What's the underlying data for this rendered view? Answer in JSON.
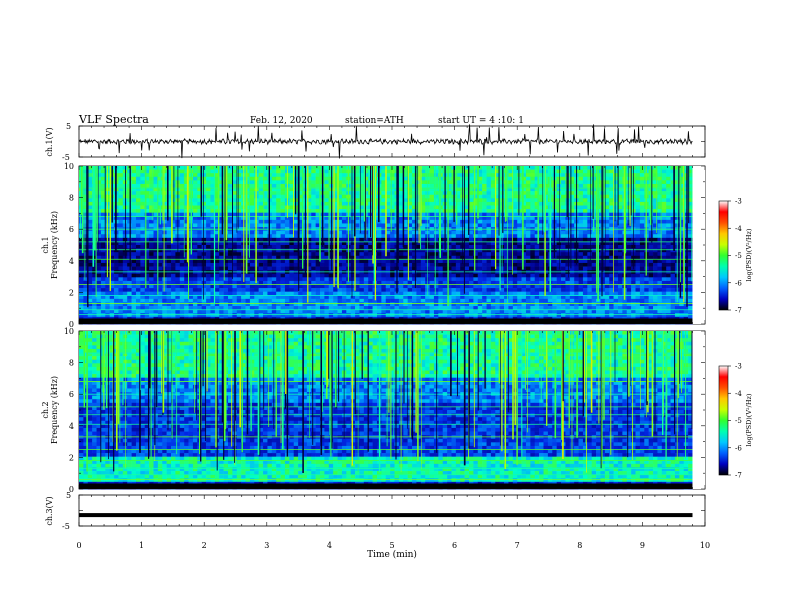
{
  "header": {
    "title": "VLF Spectra",
    "date": "Feb. 12, 2020",
    "station": "station=ATH",
    "start": "start UT =  4 :10: 1"
  },
  "chart_data": [
    {
      "type": "line",
      "ylabel": "ch.1(V)",
      "ylim": [
        -5,
        5
      ],
      "yticks": [
        "5",
        "-5"
      ],
      "baseline": 0,
      "xlim": [
        0,
        10
      ],
      "x_end": 9.8
    },
    {
      "type": "heatmap",
      "ylabel": "ch.1\nFrequency (kHz)",
      "ylabel_ch": "ch.1",
      "ylabel_freq": "Frequency (kHz)",
      "ylim": [
        0,
        10
      ],
      "yticks": [
        "0",
        "2",
        "4",
        "6",
        "8",
        "10"
      ],
      "xlim": [
        0,
        10
      ],
      "x_end": 9.8,
      "colorbar": {
        "label": "log(PSD)(V²/Hz)",
        "range": [
          -7,
          -3
        ],
        "ticks": [
          "-3",
          "-4",
          "-5",
          "-6",
          "-7"
        ],
        "colors": [
          "#000000",
          "#0000c0",
          "#0060ff",
          "#00c8ff",
          "#00ffb0",
          "#30ff30",
          "#c8ff00",
          "#ffc800",
          "#ff5000",
          "#ff0000",
          "#ffffff"
        ]
      }
    },
    {
      "type": "heatmap",
      "ylabel": "ch.2\nFrequency (kHz)",
      "ylabel_ch": "ch.2",
      "ylabel_freq": "Frequency (kHz)",
      "ylim": [
        0,
        10
      ],
      "yticks": [
        "0",
        "2",
        "4",
        "6",
        "8",
        "10"
      ],
      "xlim": [
        0,
        10
      ],
      "x_end": 9.8,
      "colorbar": {
        "label": "log(PSD)(V²/Hz)",
        "range": [
          -7,
          -3
        ],
        "ticks": [
          "-3",
          "-4",
          "-5",
          "-6",
          "-7"
        ],
        "colors": [
          "#000000",
          "#0000c0",
          "#0060ff",
          "#00c8ff",
          "#00ffb0",
          "#30ff30",
          "#c8ff00",
          "#ffc800",
          "#ff5000",
          "#ff0000",
          "#ffffff"
        ]
      }
    },
    {
      "type": "line",
      "ylabel": "ch.3(V)",
      "ylim": [
        -5,
        5
      ],
      "yticks": [
        "5",
        "-5"
      ],
      "baseline": -1.5,
      "xlim": [
        0,
        10
      ],
      "x_end": 9.8,
      "xlabel": "Time (min)",
      "xticks": [
        "0",
        "1",
        "2",
        "3",
        "4",
        "5",
        "6",
        "7",
        "8",
        "9",
        "10"
      ]
    }
  ]
}
